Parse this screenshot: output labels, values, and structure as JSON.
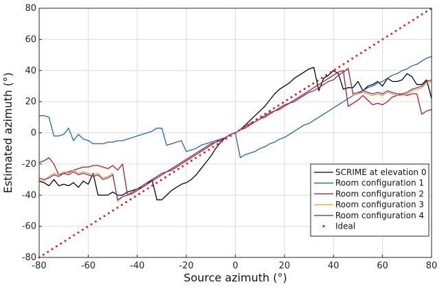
{
  "chart_data": {
    "type": "line",
    "title": "",
    "xlabel": "Source azimuth (°)",
    "ylabel": "Estimated azimuth (°)",
    "xlim": [
      -80,
      80
    ],
    "ylim": [
      -80,
      80
    ],
    "xticks": [
      -80,
      -60,
      -40,
      -20,
      0,
      20,
      40,
      60,
      80
    ],
    "yticks": [
      -80,
      -60,
      -40,
      -20,
      0,
      20,
      40,
      60,
      80
    ],
    "x_tick_labels": [
      "-80",
      "-60",
      "-40",
      "-20",
      "0",
      "20",
      "40",
      "60",
      "80"
    ],
    "y_tick_labels": [
      "-80",
      "-60",
      "-40",
      "-20",
      "0",
      "20",
      "40",
      "60",
      "80"
    ],
    "grid": true,
    "legend_position": "bottom-right",
    "series": [
      {
        "name": "SCRIME at elevation 0",
        "color": "#000000",
        "style": "solid",
        "x": [
          -80,
          -78,
          -76,
          -74,
          -72,
          -70,
          -68,
          -66,
          -64,
          -62,
          -60,
          -58,
          -56,
          -54,
          -52,
          -50,
          -48,
          -46,
          -44,
          -42,
          -40,
          -38,
          -36,
          -34,
          -32,
          -30,
          -28,
          -26,
          -24,
          -22,
          -20,
          -18,
          -16,
          -14,
          -12,
          -10,
          -8,
          -6,
          -4,
          -2,
          0,
          2,
          4,
          6,
          8,
          10,
          12,
          14,
          16,
          18,
          20,
          22,
          24,
          26,
          28,
          30,
          32,
          34,
          36,
          38,
          40,
          42,
          44,
          46,
          48,
          50,
          52,
          54,
          56,
          58,
          60,
          62,
          64,
          66,
          68,
          70,
          72,
          74,
          76,
          78,
          80
        ],
        "y": [
          -31,
          -32,
          -34,
          -30,
          -34,
          -33,
          -34,
          -32,
          -35,
          -31,
          -33,
          -26,
          -40,
          -40,
          -40,
          -38,
          -40,
          -40,
          -38,
          -37,
          -36,
          -35,
          -33,
          -30,
          -43,
          -43,
          -40,
          -37,
          -35,
          -33,
          -32,
          -30,
          -27,
          -23,
          -19,
          -15,
          -10,
          -6,
          -3,
          -1,
          0,
          2,
          5,
          8,
          11,
          14,
          17,
          21,
          25,
          28,
          30,
          32,
          35,
          37,
          39,
          41,
          42,
          27,
          35,
          37,
          40,
          38,
          28,
          29,
          29,
          33,
          27,
          30,
          31,
          33,
          30,
          35,
          33,
          33,
          34,
          38,
          36,
          31,
          31,
          34,
          22
        ]
      },
      {
        "name": "Room configuration 1",
        "color": "#2166ac",
        "style": "solid",
        "x": [
          -80,
          -78,
          -76,
          -74,
          -72,
          -70,
          -68,
          -66,
          -64,
          -62,
          -60,
          -58,
          -56,
          -54,
          -52,
          -50,
          -48,
          -46,
          -44,
          -42,
          -40,
          -38,
          -36,
          -34,
          -32,
          -30,
          -28,
          -26,
          -24,
          -22,
          -20,
          -18,
          -16,
          -14,
          -12,
          -10,
          -8,
          -6,
          -4,
          -2,
          0,
          2,
          4,
          6,
          8,
          10,
          12,
          14,
          16,
          18,
          20,
          22,
          24,
          26,
          28,
          30,
          32,
          34,
          36,
          38,
          40,
          42,
          44,
          46,
          48,
          50,
          52,
          54,
          56,
          58,
          60,
          62,
          64,
          66,
          68,
          70,
          72,
          74,
          76,
          78,
          80
        ],
        "y": [
          11,
          11,
          10,
          -2,
          -2,
          -1,
          3,
          -5,
          -1,
          -4,
          -5,
          -7,
          -7,
          -7,
          -6,
          -6,
          -5,
          -5,
          -4,
          -3,
          -2,
          -1,
          0,
          1,
          3,
          3,
          -8,
          -7,
          -6,
          -5,
          -12,
          -11,
          -10,
          -8,
          -7,
          -6,
          -5,
          -4,
          -3,
          -1,
          0,
          -16,
          -14,
          -13,
          -12,
          -10,
          -9,
          -7,
          -6,
          -4,
          -3,
          -1,
          1,
          3,
          5,
          6,
          8,
          10,
          12,
          14,
          16,
          18,
          20,
          22,
          24,
          25,
          27,
          29,
          30,
          32,
          33,
          35,
          37,
          38,
          40,
          41,
          43,
          44,
          46,
          48,
          49
        ]
      },
      {
        "name": "Room configuration 2",
        "color": "#b2182b",
        "style": "solid",
        "x": [
          -80,
          -78,
          -76,
          -74,
          -72,
          -70,
          -68,
          -66,
          -64,
          -62,
          -60,
          -58,
          -56,
          -54,
          -52,
          -50,
          -48,
          -46,
          -44,
          -42,
          -40,
          -38,
          -36,
          -34,
          -32,
          -30,
          -28,
          -26,
          -24,
          -22,
          -20,
          -18,
          -16,
          -14,
          -12,
          -10,
          -8,
          -6,
          -4,
          -2,
          0,
          2,
          4,
          6,
          8,
          10,
          12,
          14,
          16,
          18,
          20,
          22,
          24,
          26,
          28,
          30,
          32,
          34,
          36,
          38,
          40,
          42,
          44,
          46,
          48,
          50,
          52,
          54,
          56,
          58,
          60,
          62,
          64,
          66,
          68,
          70,
          72,
          74,
          76,
          78,
          80
        ],
        "y": [
          -19,
          -18,
          -16,
          -20,
          -27,
          -26,
          -25,
          -24,
          -23,
          -22,
          -22,
          -21,
          -21,
          -22,
          -23,
          -21,
          -24,
          -20,
          -40,
          -39,
          -37,
          -35,
          -33,
          -31,
          -29,
          -27,
          -25,
          -24,
          -22,
          -20,
          -18,
          -16,
          -14,
          -12,
          -10,
          -8,
          -6,
          -5,
          -3,
          -1,
          0,
          2,
          4,
          6,
          7,
          9,
          11,
          13,
          14,
          16,
          18,
          19,
          21,
          23,
          25,
          27,
          29,
          31,
          33,
          35,
          37,
          39,
          40,
          17,
          19,
          21,
          24,
          21,
          18,
          19,
          18,
          20,
          23,
          24,
          25,
          24,
          25,
          25,
          12,
          14,
          15
        ]
      },
      {
        "name": "Room configuration 3",
        "color": "#e8a317",
        "style": "solid",
        "x": [
          -80,
          -78,
          -76,
          -74,
          -72,
          -70,
          -68,
          -66,
          -64,
          -62,
          -60,
          -58,
          -56,
          -54,
          -52,
          -50,
          -48,
          -46,
          -44,
          -42,
          -40,
          -38,
          -36,
          -34,
          -32,
          -30,
          -28,
          -26,
          -24,
          -22,
          -20,
          -18,
          -16,
          -14,
          -12,
          -10,
          -8,
          -6,
          -4,
          -2,
          0,
          2,
          4,
          6,
          8,
          10,
          12,
          14,
          16,
          18,
          20,
          22,
          24,
          26,
          28,
          30,
          32,
          34,
          36,
          38,
          40,
          42,
          44,
          46,
          48,
          50,
          52,
          54,
          56,
          58,
          60,
          62,
          64,
          66,
          68,
          70,
          72,
          74,
          76,
          78,
          80
        ],
        "y": [
          -30,
          -31,
          -28,
          -26,
          -27,
          -25,
          -26,
          -24,
          -26,
          -25,
          -26,
          -27,
          -26,
          -29,
          -28,
          -26,
          -44,
          -41,
          -40,
          -38,
          -36,
          -34,
          -32,
          -30,
          -28,
          -26,
          -25,
          -23,
          -21,
          -19,
          -17,
          -15,
          -13,
          -11,
          -9,
          -7,
          -6,
          -4,
          -3,
          -1,
          0,
          2,
          3,
          5,
          7,
          9,
          10,
          12,
          14,
          15,
          17,
          19,
          20,
          22,
          24,
          26,
          27,
          29,
          31,
          33,
          34,
          37,
          39,
          42,
          24,
          25,
          26,
          25,
          24,
          25,
          24,
          26,
          25,
          24,
          24,
          25,
          27,
          28,
          29,
          32,
          33
        ]
      },
      {
        "name": "Room configuration 4",
        "color": "#7b3294",
        "style": "solid",
        "x": [
          -80,
          -78,
          -76,
          -74,
          -72,
          -70,
          -68,
          -66,
          -64,
          -62,
          -60,
          -58,
          -56,
          -54,
          -52,
          -50,
          -48,
          -46,
          -44,
          -42,
          -40,
          -38,
          -36,
          -34,
          -32,
          -30,
          -28,
          -26,
          -24,
          -22,
          -20,
          -18,
          -16,
          -14,
          -12,
          -10,
          -8,
          -6,
          -4,
          -2,
          0,
          2,
          4,
          6,
          8,
          10,
          12,
          14,
          16,
          18,
          20,
          22,
          24,
          26,
          28,
          30,
          32,
          34,
          36,
          38,
          40,
          42,
          44,
          46,
          48,
          50,
          52,
          54,
          56,
          58,
          60,
          62,
          64,
          66,
          68,
          70,
          72,
          74,
          76,
          78,
          80
        ],
        "y": [
          -29,
          -30,
          -29,
          -27,
          -28,
          -26,
          -27,
          -25,
          -27,
          -26,
          -27,
          -28,
          -27,
          -30,
          -29,
          -27,
          -43,
          -41,
          -40,
          -38,
          -36,
          -34,
          -32,
          -30,
          -28,
          -26,
          -25,
          -23,
          -21,
          -19,
          -17,
          -15,
          -13,
          -11,
          -9,
          -7,
          -6,
          -4,
          -3,
          -1,
          0,
          2,
          3,
          5,
          7,
          9,
          10,
          12,
          14,
          15,
          17,
          19,
          20,
          22,
          24,
          26,
          27,
          29,
          31,
          33,
          34,
          37,
          39,
          41,
          25,
          26,
          27,
          26,
          25,
          26,
          25,
          27,
          26,
          25,
          25,
          26,
          28,
          29,
          30,
          33,
          34
        ]
      },
      {
        "name": "Ideal",
        "color": "#e41a1c",
        "style": "dotted",
        "x": [
          -80,
          80
        ],
        "y": [
          -80,
          80
        ]
      }
    ],
    "green_overlay_color": "#4d9a4d"
  }
}
